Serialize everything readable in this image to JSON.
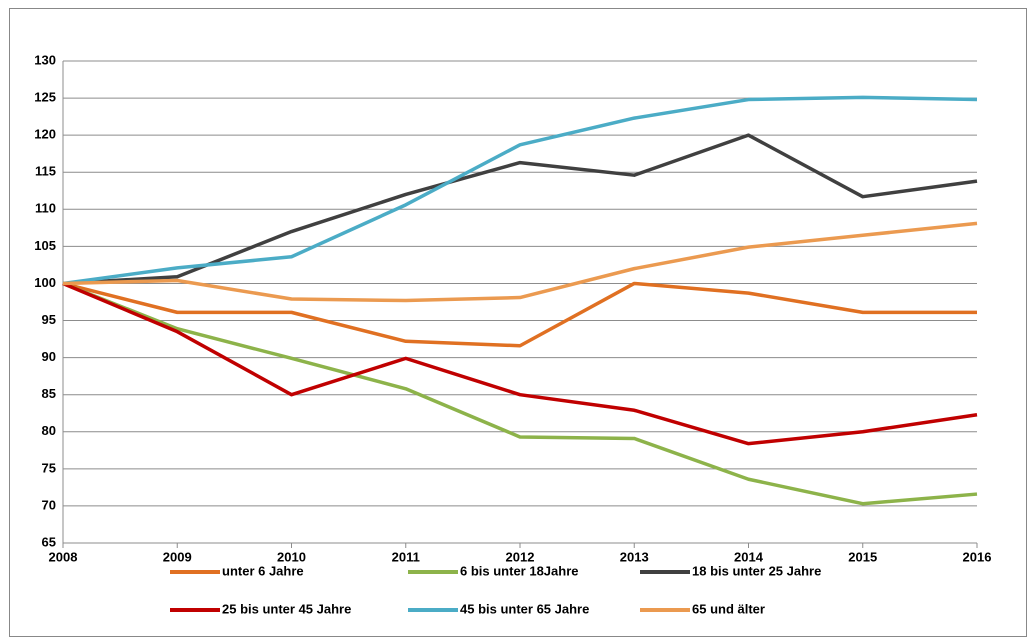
{
  "chart_data": {
    "type": "line",
    "x": [
      2008,
      2009,
      2010,
      2011,
      2012,
      2013,
      2014,
      2015,
      2016
    ],
    "xlim": [
      2008,
      2016
    ],
    "xticks": [
      2008,
      2009,
      2010,
      2011,
      2012,
      2013,
      2014,
      2015,
      2016
    ],
    "ylim": [
      65,
      130
    ],
    "yticks": [
      65,
      70,
      75,
      80,
      85,
      90,
      95,
      100,
      105,
      110,
      115,
      120,
      125,
      130
    ],
    "grid": true,
    "legend": "bottom",
    "series": [
      {
        "name": "unter 6 Jahre",
        "color": "#e07022",
        "values": [
          100,
          96.1,
          96.1,
          92.2,
          91.6,
          100,
          98.7,
          96.1,
          96.1
        ]
      },
      {
        "name": "6 bis unter 18Jahre",
        "color": "#8db34a",
        "values": [
          100,
          93.9,
          89.9,
          85.8,
          79.3,
          79.1,
          73.6,
          70.3,
          71.6
        ]
      },
      {
        "name": "18 bis unter 25 Jahre",
        "color": "#404040",
        "values": [
          100,
          100.9,
          107,
          112,
          116.3,
          114.6,
          120,
          111.7,
          113.8
        ]
      },
      {
        "name": "25 bis unter 45 Jahre",
        "color": "#c00000",
        "values": [
          100,
          93.5,
          85,
          89.9,
          85,
          82.9,
          78.4,
          80,
          82.3
        ]
      },
      {
        "name": "45 bis unter 65 Jahre",
        "color": "#4bacc6",
        "values": [
          100,
          102.1,
          103.6,
          110.6,
          118.7,
          122.3,
          124.8,
          125.1,
          124.8
        ]
      },
      {
        "name": "65 und älter",
        "color": "#eb9a50",
        "values": [
          100,
          100.4,
          97.9,
          97.7,
          98.1,
          102,
          104.9,
          106.5,
          108.1
        ]
      }
    ]
  }
}
